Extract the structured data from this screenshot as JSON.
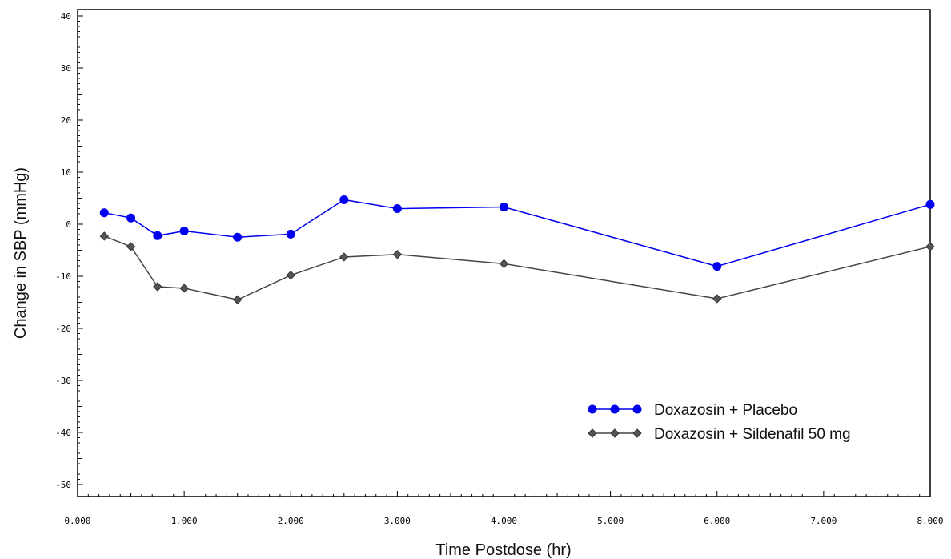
{
  "chart_data": {
    "type": "line",
    "xlabel": "Time Postdose (hr)",
    "ylabel": "Change in SBP  (mmHg)",
    "xlim": [
      0,
      8
    ],
    "ylim": [
      -50,
      40
    ],
    "x_ticks": [
      0,
      1,
      2,
      3,
      4,
      5,
      6,
      7,
      8
    ],
    "x_tick_labels": [
      "0.000",
      "1.000",
      "2.000",
      "3.000",
      "4.000",
      "5.000",
      "6.000",
      "7.000",
      "8.000"
    ],
    "y_ticks": [
      -50,
      -40,
      -30,
      -20,
      -10,
      0,
      10,
      20,
      30,
      40
    ],
    "y_tick_labels": [
      "-50",
      "-40",
      "-30",
      "-20",
      "-10",
      "0",
      "10",
      "20",
      "30",
      "40"
    ],
    "grid": false,
    "legend_position": "bottom-right",
    "series": [
      {
        "name": "Doxazosin + Placebo",
        "color": "#0000ee",
        "marker": "circle",
        "x": [
          0.25,
          0.5,
          0.75,
          1.0,
          1.5,
          2.0,
          2.5,
          3.0,
          4.0,
          6.0,
          8.0
        ],
        "y": [
          2.2,
          1.2,
          -2.2,
          -1.3,
          -2.5,
          -1.9,
          4.7,
          3.0,
          3.3,
          -8.1,
          3.8
        ]
      },
      {
        "name": "Doxazosin + Sildenafil 50 mg",
        "color": "#444444",
        "marker": "diamond",
        "x": [
          0.25,
          0.5,
          0.75,
          1.0,
          1.5,
          2.0,
          2.5,
          3.0,
          4.0,
          6.0,
          8.0
        ],
        "y": [
          -2.3,
          -4.3,
          -12.0,
          -12.3,
          -14.5,
          -9.8,
          -6.3,
          -5.8,
          -7.6,
          -14.3,
          -4.3
        ]
      }
    ]
  }
}
